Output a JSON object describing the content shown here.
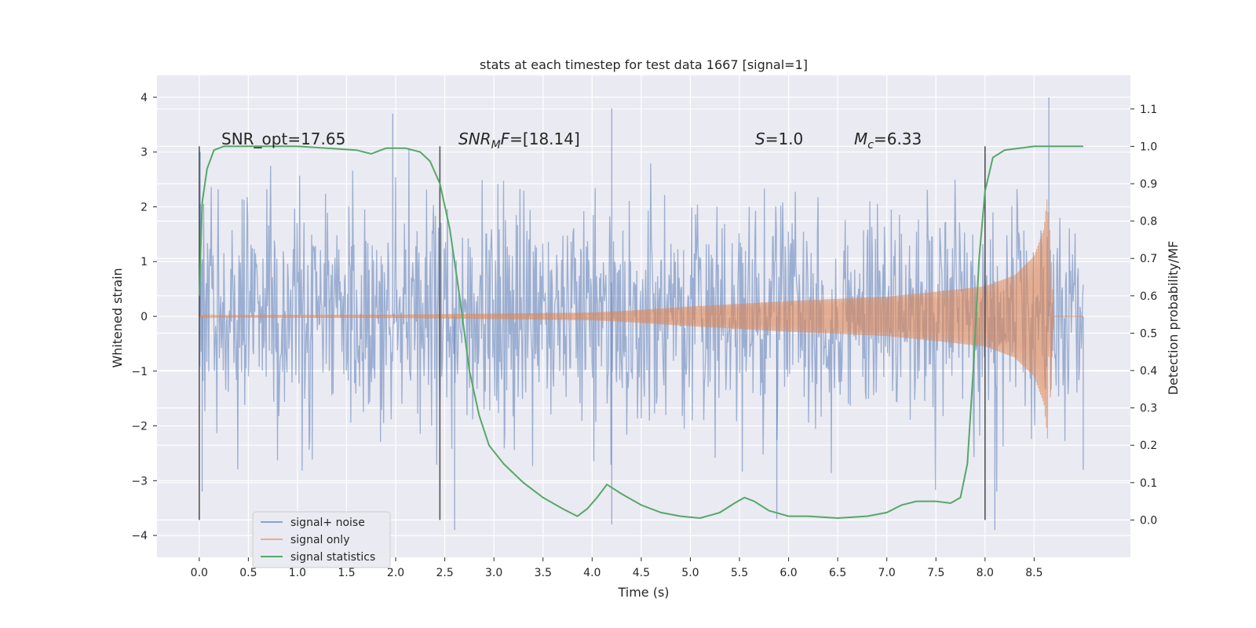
{
  "chart_data": {
    "type": "line",
    "title": "stats at each timestep for test data 1667 [signal=1]",
    "xlabel": "Time (s)",
    "ylabel": "Whitened strain",
    "y2label": "Detection probability/MF",
    "xlim": [
      -0.43,
      9.48
    ],
    "ylim": [
      -4.4,
      4.4
    ],
    "y2lim": [
      -0.1,
      1.19
    ],
    "xticks": [
      "0.0",
      "0.5",
      "1.0",
      "1.5",
      "2.0",
      "2.5",
      "3.0",
      "3.5",
      "4.0",
      "4.5",
      "5.0",
      "5.5",
      "6.0",
      "6.5",
      "7.0",
      "7.5",
      "8.0",
      "8.5"
    ],
    "yticks": [
      "4",
      "3",
      "2",
      "1",
      "0",
      "−1",
      "−2",
      "−3",
      "−4"
    ],
    "y2ticks": [
      "1.1",
      "1.0",
      "0.9",
      "0.8",
      "0.7",
      "0.6",
      "0.5",
      "0.4",
      "0.3",
      "0.2",
      "0.1",
      "0.0"
    ],
    "grid": true,
    "legend_position": "lower-left",
    "annotations": {
      "snr_opt": "SNR_opt=17.65",
      "snr_mf_base": "SNR",
      "snr_mf_sub": "M",
      "snr_mf_rest": "F=[18.14]",
      "s_var": "S",
      "s_val": "=1.0",
      "mc_var": "M",
      "mc_sub": "c",
      "mc_val": "=6.33"
    },
    "vlines_time": [
      0.0,
      2.45,
      8.0
    ],
    "series": [
      {
        "name": "signal+ noise",
        "color": "#4c72b0",
        "description_level": "noise",
        "x_range": [
          0.0,
          9.0
        ],
        "std": 1.0,
        "peaks": [
          [
            0.01,
            3.0
          ],
          [
            0.03,
            -3.2
          ],
          [
            1.97,
            3.7
          ],
          [
            2.6,
            -3.9
          ],
          [
            4.2,
            3.8
          ],
          [
            4.2,
            -3.8
          ],
          [
            5.88,
            -3.7
          ],
          [
            8.1,
            -3.9
          ],
          [
            8.65,
            4.0
          ],
          [
            9.0,
            -2.8
          ]
        ]
      },
      {
        "name": "signal only",
        "color": "#dd8452",
        "x_range": [
          0.0,
          8.7
        ],
        "envelope": [
          [
            0.0,
            0.02
          ],
          [
            2.0,
            0.03
          ],
          [
            3.0,
            0.05
          ],
          [
            4.0,
            0.07
          ],
          [
            4.5,
            0.12
          ],
          [
            5.0,
            0.18
          ],
          [
            5.5,
            0.23
          ],
          [
            6.0,
            0.28
          ],
          [
            6.5,
            0.32
          ],
          [
            7.0,
            0.36
          ],
          [
            7.5,
            0.45
          ],
          [
            8.0,
            0.55
          ],
          [
            8.3,
            0.75
          ],
          [
            8.5,
            1.1
          ],
          [
            8.6,
            1.6
          ],
          [
            8.64,
            2.3
          ],
          [
            8.66,
            -1.7
          ],
          [
            8.7,
            0.0
          ]
        ]
      },
      {
        "name": "signal statistics",
        "color": "#55a868",
        "axis": "right",
        "x": [
          0.0,
          0.03,
          0.08,
          0.15,
          0.25,
          0.4,
          0.6,
          0.8,
          1.0,
          1.3,
          1.6,
          1.75,
          1.9,
          2.1,
          2.25,
          2.35,
          2.45,
          2.55,
          2.65,
          2.75,
          2.85,
          2.95,
          3.1,
          3.3,
          3.5,
          3.7,
          3.85,
          3.95,
          4.05,
          4.15,
          4.3,
          4.5,
          4.7,
          4.9,
          5.1,
          5.3,
          5.45,
          5.55,
          5.65,
          5.8,
          6.0,
          6.2,
          6.5,
          6.8,
          7.0,
          7.15,
          7.3,
          7.5,
          7.65,
          7.75,
          7.82,
          7.88,
          7.94,
          8.0,
          8.08,
          8.2,
          8.5,
          8.8,
          9.0
        ],
        "y": [
          0.6,
          0.85,
          0.94,
          0.99,
          1.0,
          1.0,
          1.0,
          1.0,
          1.0,
          0.995,
          0.99,
          0.98,
          0.995,
          0.995,
          0.985,
          0.96,
          0.9,
          0.78,
          0.6,
          0.4,
          0.28,
          0.2,
          0.15,
          0.1,
          0.06,
          0.03,
          0.01,
          0.03,
          0.06,
          0.095,
          0.07,
          0.04,
          0.02,
          0.01,
          0.005,
          0.02,
          0.045,
          0.06,
          0.05,
          0.025,
          0.01,
          0.01,
          0.005,
          0.01,
          0.02,
          0.04,
          0.05,
          0.05,
          0.045,
          0.06,
          0.15,
          0.4,
          0.7,
          0.88,
          0.97,
          0.99,
          1.0,
          1.0,
          1.0
        ]
      }
    ]
  }
}
